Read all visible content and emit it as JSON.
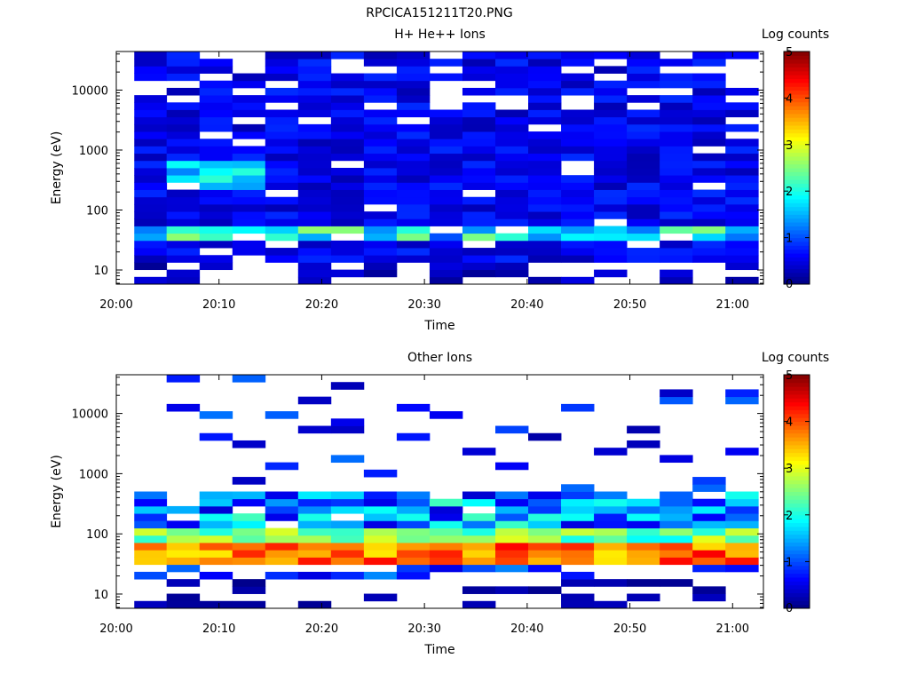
{
  "figure": {
    "suptitle": "RPCICA151211T20.PNG"
  },
  "chart_data": [
    {
      "type": "heatmap",
      "title": "H+ He++ Ions",
      "xlabel": "Time",
      "ylabel": "Energy (eV)",
      "x_ticks": [
        "20:00",
        "20:10",
        "20:20",
        "20:30",
        "20:40",
        "20:50",
        "21:00"
      ],
      "x_tick_minutes": [
        0,
        10,
        20,
        30,
        40,
        50,
        60
      ],
      "xlim_minutes": [
        0,
        63
      ],
      "y_scale": "log",
      "y_ticks": [
        "10",
        "100",
        "1000",
        "10000"
      ],
      "y_tick_values": [
        10,
        100,
        1000,
        10000
      ],
      "ylim": [
        5.8,
        44000
      ],
      "colorbar": {
        "title": "Log counts",
        "ticks": [
          "0",
          "1",
          "2",
          "3",
          "4",
          "5"
        ],
        "range": [
          0,
          5
        ],
        "colormap": "jet"
      },
      "time_bins_minutes": [
        1.75,
        4.9,
        8.1,
        11.3,
        14.5,
        17.7,
        20.9,
        24.1,
        27.3,
        30.5,
        33.7,
        36.9,
        40.1,
        43.3,
        46.5,
        49.7,
        52.9,
        56.1,
        59.3,
        62.5
      ],
      "profile": "H",
      "description": "broadband low counts (0-1) from ~10 eV to ~40 keV; enhanced 30-60 eV band (2-3); enhanced 300-600 eV near 20:05-20:12"
    },
    {
      "type": "heatmap",
      "title": "Other Ions",
      "xlabel": "Time",
      "ylabel": "Energy (eV)",
      "x_ticks": [
        "20:00",
        "20:10",
        "20:20",
        "20:30",
        "20:40",
        "20:50",
        "21:00"
      ],
      "x_tick_minutes": [
        0,
        10,
        20,
        30,
        40,
        50,
        60
      ],
      "xlim_minutes": [
        0,
        63
      ],
      "y_scale": "log",
      "y_ticks": [
        "10",
        "100",
        "1000",
        "10000"
      ],
      "y_tick_values": [
        10,
        100,
        1000,
        10000
      ],
      "ylim": [
        5.8,
        44000
      ],
      "colorbar": {
        "title": "Log counts",
        "ticks": [
          "0",
          "1",
          "2",
          "3",
          "4",
          "5"
        ],
        "range": [
          0,
          5
        ],
        "colormap": "jet"
      },
      "time_bins_minutes": [
        1.75,
        4.9,
        8.1,
        11.3,
        14.5,
        17.7,
        20.9,
        24.1,
        27.3,
        30.5,
        33.7,
        36.9,
        40.1,
        43.3,
        46.5,
        49.7,
        52.9,
        56.1,
        59.3,
        62.5
      ],
      "profile": "O",
      "description": "peak band 35-60 eV (3.5-4.5); 60-500 eV moderate (1.5-3); sparse high-energy traces above 1 keV"
    }
  ]
}
